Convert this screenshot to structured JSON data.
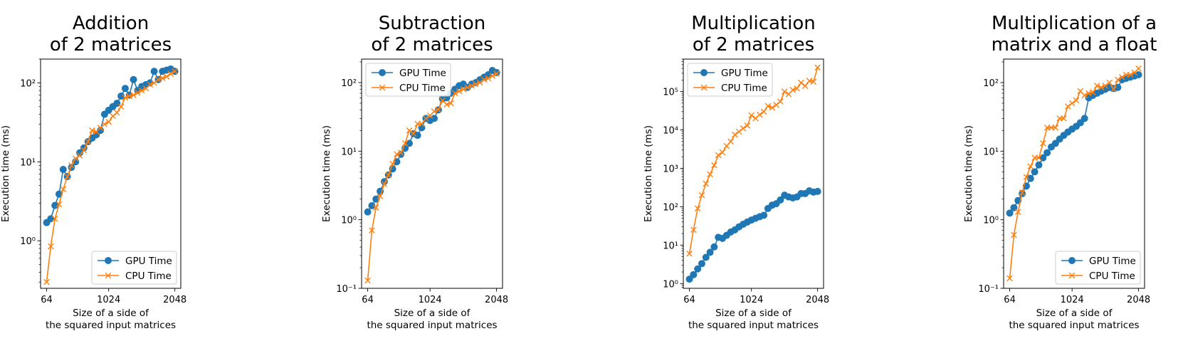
{
  "colors": {
    "gpu": "#1f77b4",
    "cpu": "#ff7f0e",
    "axes": "#000000",
    "background": "#ffffff"
  },
  "chart_data": [
    {
      "type": "line",
      "title": [
        "Addition",
        "of 2 matrices"
      ],
      "xlabel": [
        "Size of a side of",
        "the squared input matrices"
      ],
      "ylabel": "Execution time (ms)",
      "yscale": "log",
      "xlim": [
        -30,
        2140
      ],
      "ylim": [
        0.25,
        200
      ],
      "x_ticks": [
        64,
        1024,
        2048
      ],
      "x_tick_labels": [
        "64",
        "1024",
        "2048"
      ],
      "y_ticks": [
        1,
        10,
        100
      ],
      "y_tick_labels": [
        "10⁰",
        "10¹",
        "10²"
      ],
      "legend_position": "lower right",
      "grid": false,
      "x": [
        64,
        128,
        192,
        256,
        320,
        384,
        448,
        512,
        576,
        640,
        704,
        768,
        832,
        896,
        960,
        1024,
        1088,
        1152,
        1216,
        1280,
        1344,
        1408,
        1472,
        1536,
        1600,
        1664,
        1728,
        1792,
        1856,
        1920,
        1984,
        2048
      ],
      "series": [
        {
          "name": "GPU Time",
          "marker": "circle",
          "values": [
            1.7,
            1.9,
            2.8,
            3.9,
            8,
            6.5,
            8.5,
            10,
            13,
            15,
            18,
            20,
            22,
            25,
            40,
            45,
            50,
            55,
            68,
            85,
            70,
            110,
            80,
            90,
            95,
            100,
            140,
            110,
            140,
            145,
            150,
            140
          ]
        },
        {
          "name": "CPU Time",
          "marker": "x",
          "values": [
            0.3,
            0.85,
            1.9,
            2.9,
            4.5,
            6.5,
            9,
            11,
            12,
            14,
            18,
            25,
            24,
            27,
            30,
            32,
            38,
            42,
            50,
            65,
            68,
            70,
            75,
            80,
            85,
            95,
            100,
            110,
            115,
            120,
            130,
            140
          ]
        }
      ]
    },
    {
      "type": "line",
      "title": [
        "Subtraction",
        "of 2 matrices"
      ],
      "xlabel": [
        "Size of a side of",
        "the squared input matrices"
      ],
      "ylabel": "Execution time (ms)",
      "yscale": "log",
      "xlim": [
        -30,
        2140
      ],
      "ylim": [
        0.1,
        220
      ],
      "x_ticks": [
        64,
        1024,
        2048
      ],
      "x_tick_labels": [
        "64",
        "1024",
        "2048"
      ],
      "y_ticks": [
        0.1,
        1,
        10,
        100
      ],
      "y_tick_labels": [
        "10⁻¹",
        "10⁰",
        "10¹",
        "10²"
      ],
      "legend_position": "upper left",
      "grid": false,
      "x": [
        64,
        128,
        192,
        256,
        320,
        384,
        448,
        512,
        576,
        640,
        704,
        768,
        832,
        896,
        960,
        1024,
        1088,
        1152,
        1216,
        1280,
        1344,
        1408,
        1472,
        1536,
        1600,
        1664,
        1728,
        1792,
        1856,
        1920,
        1984,
        2048
      ],
      "series": [
        {
          "name": "GPU Time",
          "marker": "circle",
          "values": [
            1.3,
            1.6,
            2,
            2.6,
            3.6,
            4.5,
            5.5,
            7,
            9,
            11,
            13,
            18,
            17,
            22,
            30,
            28,
            30,
            40,
            58,
            60,
            70,
            80,
            90,
            95,
            85,
            95,
            100,
            110,
            120,
            130,
            150,
            140
          ]
        },
        {
          "name": "CPU Time",
          "marker": "x",
          "values": [
            0.13,
            0.7,
            1.5,
            2.2,
            3.3,
            4.5,
            6.5,
            9,
            9.5,
            13,
            20,
            18,
            25,
            25,
            30,
            33,
            38,
            40,
            55,
            48,
            50,
            70,
            75,
            80,
            85,
            90,
            95,
            100,
            110,
            115,
            125,
            135
          ]
        }
      ]
    },
    {
      "type": "line",
      "title": [
        "Multiplication",
        "of 2 matrices"
      ],
      "xlabel": [
        "Size of a side of",
        "the squared input matrices"
      ],
      "ylabel": "Execution time (ms)",
      "yscale": "log",
      "xlim": [
        -30,
        2140
      ],
      "ylim": [
        0.75,
        700000
      ],
      "x_ticks": [
        64,
        1024,
        2048
      ],
      "x_tick_labels": [
        "64",
        "1024",
        "2048"
      ],
      "y_ticks": [
        1,
        10,
        100,
        1000,
        10000,
        100000
      ],
      "y_tick_labels": [
        "10⁰",
        "10¹",
        "10²",
        "10³",
        "10⁴",
        "10⁵"
      ],
      "legend_position": "upper left",
      "grid": false,
      "x": [
        64,
        128,
        192,
        256,
        320,
        384,
        448,
        512,
        576,
        640,
        704,
        768,
        832,
        896,
        960,
        1024,
        1088,
        1152,
        1216,
        1280,
        1344,
        1408,
        1472,
        1536,
        1600,
        1664,
        1728,
        1792,
        1856,
        1920,
        1984,
        2048
      ],
      "series": [
        {
          "name": "GPU Time",
          "marker": "circle",
          "values": [
            1.3,
            1.7,
            2.4,
            3.3,
            4.8,
            6.5,
            9,
            16,
            15,
            18,
            22,
            25,
            30,
            35,
            40,
            45,
            50,
            55,
            60,
            90,
            110,
            120,
            150,
            200,
            180,
            170,
            180,
            220,
            220,
            260,
            240,
            250
          ]
        },
        {
          "name": "CPU Time",
          "marker": "x",
          "values": [
            6,
            25,
            90,
            200,
            400,
            700,
            1200,
            2200,
            2600,
            3800,
            5000,
            7500,
            9000,
            11000,
            13000,
            24000,
            20000,
            25000,
            30000,
            42000,
            38000,
            45000,
            55000,
            100000,
            85000,
            110000,
            120000,
            170000,
            140000,
            190000,
            180000,
            420000
          ]
        }
      ]
    },
    {
      "type": "line",
      "title": [
        "Multiplication of a",
        "matrix and a float"
      ],
      "xlabel": [
        "Size of a side of",
        "the squared input matrices"
      ],
      "ylabel": "Execution time (ms)",
      "yscale": "log",
      "xlim": [
        -30,
        2140
      ],
      "ylim": [
        0.1,
        220
      ],
      "x_ticks": [
        64,
        1024,
        2048
      ],
      "x_tick_labels": [
        "64",
        "1024",
        "2048"
      ],
      "y_ticks": [
        0.1,
        1,
        10,
        100
      ],
      "y_tick_labels": [
        "10⁻¹",
        "10⁰",
        "10¹",
        "10²"
      ],
      "legend_position": "lower right",
      "grid": false,
      "x": [
        64,
        128,
        192,
        256,
        320,
        384,
        448,
        512,
        576,
        640,
        704,
        768,
        832,
        896,
        960,
        1024,
        1088,
        1152,
        1216,
        1280,
        1344,
        1408,
        1472,
        1536,
        1600,
        1664,
        1728,
        1792,
        1856,
        1920,
        1984,
        2048
      ],
      "series": [
        {
          "name": "GPU Time",
          "marker": "circle",
          "values": [
            1.25,
            1.5,
            1.9,
            2.4,
            3.1,
            4,
            5,
            6.3,
            8,
            9.5,
            11.5,
            13,
            15,
            17,
            19,
            21,
            23,
            26,
            30,
            60,
            65,
            70,
            75,
            80,
            85,
            82,
            85,
            110,
            115,
            120,
            125,
            130
          ]
        },
        {
          "name": "CPU Time",
          "marker": "x",
          "values": [
            0.14,
            0.6,
            1.3,
            2.5,
            4.2,
            6,
            8,
            8,
            13,
            22,
            22,
            22,
            30,
            30,
            45,
            50,
            55,
            75,
            65,
            70,
            72,
            90,
            85,
            90,
            100,
            80,
            110,
            120,
            130,
            130,
            140,
            160
          ]
        }
      ]
    }
  ]
}
